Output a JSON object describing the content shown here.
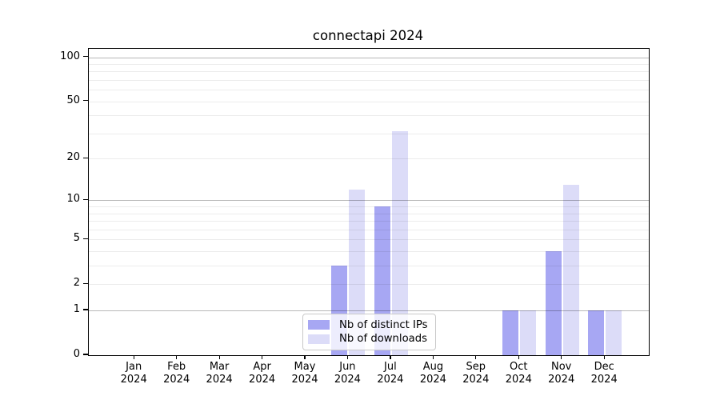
{
  "chart_data": {
    "type": "bar",
    "title": "connectapi 2024",
    "categories": [
      "Jan",
      "Feb",
      "Mar",
      "Apr",
      "May",
      "Jun",
      "Jul",
      "Aug",
      "Sep",
      "Oct",
      "Nov",
      "Dec"
    ],
    "year_label": "2024",
    "series": [
      {
        "name": "Nb of distinct IPs",
        "color": "#a7a7f3",
        "values": [
          0,
          0,
          0,
          0,
          0,
          3,
          9,
          0,
          0,
          1,
          4,
          1
        ]
      },
      {
        "name": "Nb of downloads",
        "color": "#dcdcf8",
        "values": [
          0,
          0,
          0,
          0,
          0,
          12,
          31,
          0,
          0,
          1,
          13,
          1
        ]
      }
    ],
    "yscale": "log1p",
    "yticks": [
      0,
      1,
      2,
      5,
      10,
      20,
      50,
      100
    ],
    "ylim": [
      0,
      114
    ],
    "major_gridlines": [
      1,
      10,
      100
    ],
    "minor_gridlines": [
      2,
      3,
      4,
      5,
      6,
      7,
      8,
      9,
      20,
      30,
      40,
      50,
      60,
      70,
      80,
      90
    ],
    "grid": "horizontal",
    "xlabel": "",
    "ylabel": "",
    "legend_position": "lower center"
  }
}
